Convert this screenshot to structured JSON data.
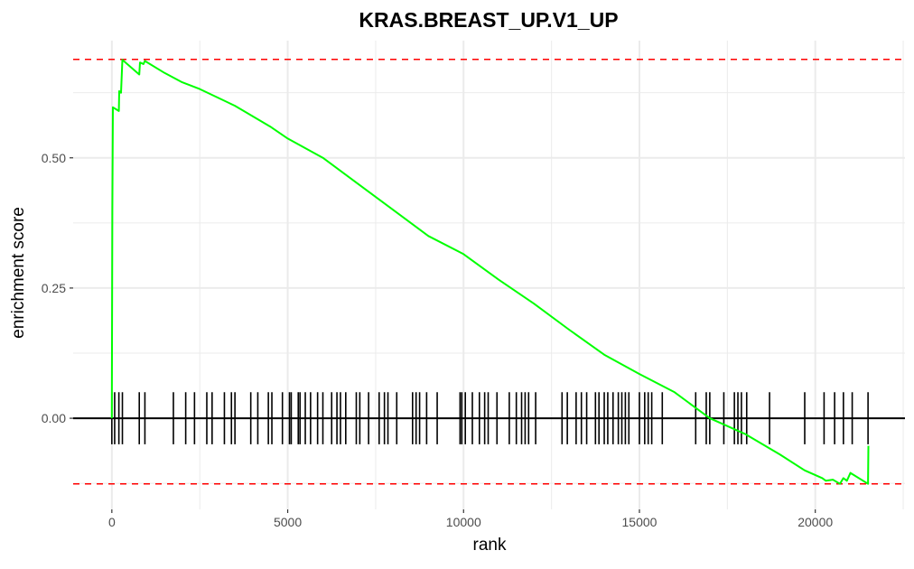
{
  "chart_data": {
    "type": "line",
    "title": "KRAS.BREAST_UP.V1_UP",
    "xlabel": "rank",
    "ylabel": "enrichment score",
    "xlim": [
      -1100,
      22550
    ],
    "ylim": [
      -0.175,
      0.725
    ],
    "x_ticks": [
      0,
      5000,
      10000,
      15000,
      20000
    ],
    "x_tick_labels": [
      "0",
      "5000",
      "10000",
      "15000",
      "20000"
    ],
    "y_ticks": [
      0.0,
      0.25,
      0.5
    ],
    "y_tick_labels": [
      "0.00",
      "0.25",
      "0.50"
    ],
    "grid": true,
    "colors": {
      "curve": "#00ff00",
      "threshold": "#ff0000",
      "hits": "#000000",
      "grid": "#ebebeb",
      "zero_line": "#000000"
    },
    "threshold_lines": [
      0.689,
      -0.126
    ],
    "hit_tick_half_height": 0.05,
    "series": [
      {
        "values": [
          [
            0,
            0.0
          ],
          [
            15,
            0.4
          ],
          [
            30,
            0.597
          ],
          [
            200,
            0.59
          ],
          [
            210,
            0.628
          ],
          [
            260,
            0.625
          ],
          [
            300,
            0.688
          ],
          [
            780,
            0.66
          ],
          [
            800,
            0.683
          ],
          [
            900,
            0.68
          ],
          [
            940,
            0.686
          ],
          [
            1500,
            0.663
          ],
          [
            2000,
            0.645
          ],
          [
            2500,
            0.632
          ],
          [
            3000,
            0.616
          ],
          [
            3500,
            0.6
          ],
          [
            4000,
            0.58
          ],
          [
            4500,
            0.56
          ],
          [
            5000,
            0.537
          ],
          [
            6000,
            0.5
          ],
          [
            7000,
            0.45
          ],
          [
            8000,
            0.4
          ],
          [
            9000,
            0.35
          ],
          [
            10000,
            0.315
          ],
          [
            11000,
            0.266
          ],
          [
            12000,
            0.22
          ],
          [
            13000,
            0.17
          ],
          [
            14000,
            0.122
          ],
          [
            15000,
            0.085
          ],
          [
            16000,
            0.05
          ],
          [
            17000,
            0.0
          ],
          [
            18000,
            -0.03
          ],
          [
            19000,
            -0.07
          ],
          [
            19700,
            -0.1
          ],
          [
            20200,
            -0.115
          ],
          [
            20300,
            -0.12
          ],
          [
            20500,
            -0.118
          ],
          [
            20700,
            -0.126
          ],
          [
            20800,
            -0.115
          ],
          [
            20900,
            -0.12
          ],
          [
            21000,
            -0.105
          ],
          [
            21500,
            -0.126
          ],
          [
            21510,
            -0.053
          ]
        ]
      }
    ],
    "hits": [
      0,
      80,
      200,
      300,
      780,
      940,
      1750,
      2100,
      2350,
      2700,
      2850,
      3200,
      3400,
      3500,
      3950,
      4150,
      4450,
      4550,
      4850,
      5050,
      5100,
      5300,
      5350,
      5500,
      5650,
      5850,
      6000,
      6250,
      6400,
      6500,
      6650,
      6950,
      7050,
      7300,
      7600,
      7750,
      7850,
      8100,
      8550,
      8650,
      8750,
      8950,
      9250,
      9900,
      9950,
      10050,
      10250,
      10450,
      10600,
      10700,
      10950,
      11300,
      11500,
      11650,
      11750,
      11850,
      12050,
      12800,
      12950,
      13200,
      13350,
      13500,
      13750,
      13850,
      14000,
      14100,
      14250,
      14400,
      14500,
      14600,
      14700,
      15000,
      15150,
      15250,
      15350,
      15650,
      16600,
      16900,
      17000,
      17400,
      17700,
      17800,
      17900,
      18050,
      18700,
      19700,
      20250,
      20550,
      20800,
      21050,
      21500
    ]
  }
}
